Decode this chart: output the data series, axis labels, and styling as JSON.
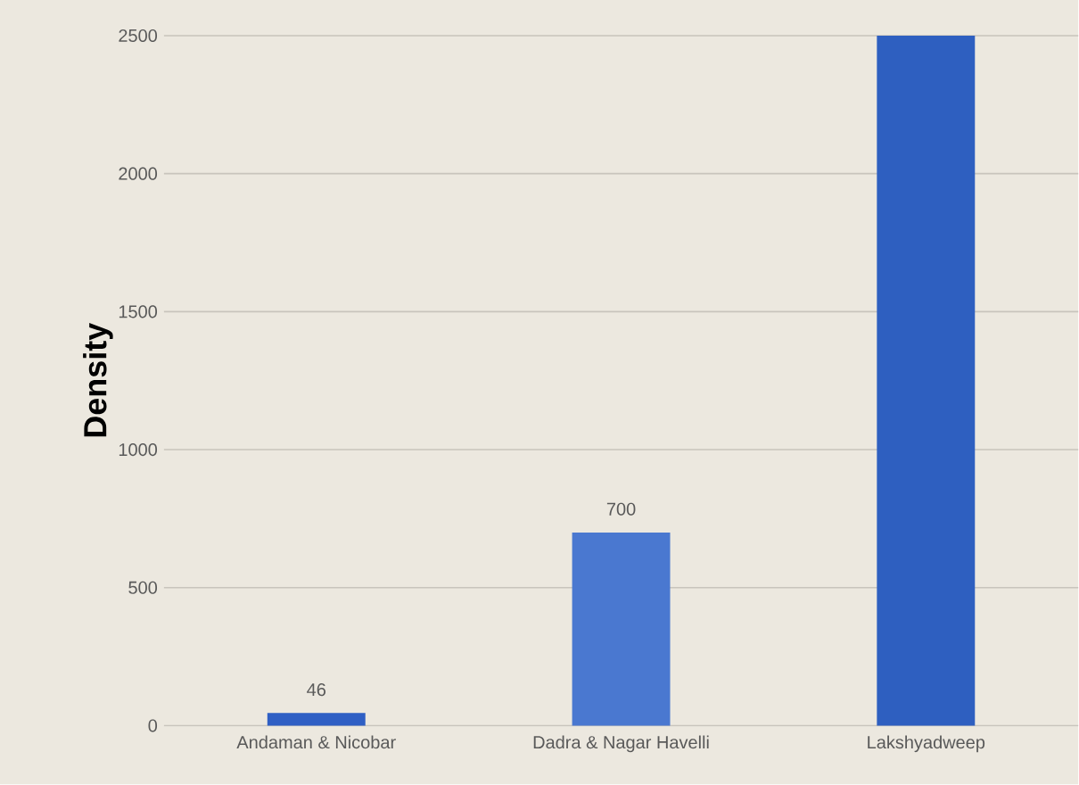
{
  "chart_data": {
    "type": "bar",
    "ylabel": "Density",
    "categories": [
      "Andaman & Nicobar",
      "Dadra & Nagar Havelli",
      "Lakshyadweep"
    ],
    "values": [
      46,
      700,
      2500
    ],
    "colors": [
      "#2f5fc4",
      "#4a78d0",
      "#2e5fc0"
    ],
    "value_labels": [
      "46",
      "700",
      null
    ],
    "ylim": [
      0,
      2500
    ],
    "yticks": [
      0,
      500,
      1000,
      1500,
      2000,
      2500
    ],
    "grid": "y"
  }
}
